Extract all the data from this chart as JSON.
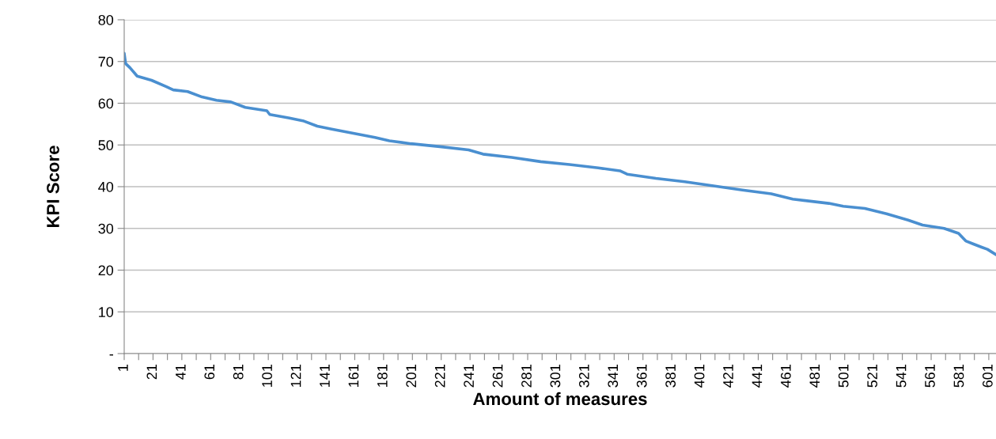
{
  "chart_data": {
    "type": "line",
    "xlabel": "Amount of measures",
    "ylabel": "KPI Score",
    "x": [
      1,
      2,
      5,
      10,
      20,
      30,
      35,
      45,
      55,
      65,
      75,
      85,
      100,
      102,
      115,
      125,
      135,
      145,
      160,
      175,
      185,
      200,
      220,
      240,
      250,
      270,
      290,
      310,
      330,
      345,
      350,
      370,
      390,
      410,
      430,
      450,
      465,
      490,
      500,
      515,
      530,
      545,
      555,
      570,
      580,
      585,
      590,
      596,
      600,
      606
    ],
    "series": [
      {
        "color": "#4a8fd0",
        "values": [
          72,
          69.5,
          68.5,
          66.5,
          65.5,
          64,
          63.2,
          62.8,
          61.5,
          60.7,
          60.3,
          59,
          58.2,
          57.3,
          56.5,
          55.8,
          54.5,
          53.8,
          52.8,
          51.8,
          51,
          50.3,
          49.6,
          48.8,
          47.8,
          47,
          46,
          45.3,
          44.5,
          43.8,
          43,
          42,
          41.2,
          40.2,
          39.2,
          38.3,
          37,
          36,
          35.3,
          34.8,
          33.5,
          32,
          30.8,
          30,
          28.8,
          27,
          26.3,
          25.5,
          25,
          23.7
        ]
      }
    ],
    "xlim": [
      1,
      606
    ],
    "xticks": [
      {
        "value": 1,
        "label": "1"
      },
      {
        "value": 11,
        "label": null
      },
      {
        "value": 21,
        "label": "21"
      },
      {
        "value": 31,
        "label": null
      },
      {
        "value": 41,
        "label": "41"
      },
      {
        "value": 51,
        "label": null
      },
      {
        "value": 61,
        "label": "61"
      },
      {
        "value": 71,
        "label": null
      },
      {
        "value": 81,
        "label": "81"
      },
      {
        "value": 91,
        "label": null
      },
      {
        "value": 101,
        "label": "101"
      },
      {
        "value": 111,
        "label": null
      },
      {
        "value": 121,
        "label": "121"
      },
      {
        "value": 131,
        "label": null
      },
      {
        "value": 141,
        "label": "141"
      },
      {
        "value": 151,
        "label": null
      },
      {
        "value": 161,
        "label": "161"
      },
      {
        "value": 171,
        "label": null
      },
      {
        "value": 181,
        "label": "181"
      },
      {
        "value": 191,
        "label": null
      },
      {
        "value": 201,
        "label": "201"
      },
      {
        "value": 211,
        "label": null
      },
      {
        "value": 221,
        "label": "221"
      },
      {
        "value": 231,
        "label": null
      },
      {
        "value": 241,
        "label": "241"
      },
      {
        "value": 251,
        "label": null
      },
      {
        "value": 261,
        "label": "261"
      },
      {
        "value": 271,
        "label": null
      },
      {
        "value": 281,
        "label": "281"
      },
      {
        "value": 291,
        "label": null
      },
      {
        "value": 301,
        "label": "301"
      },
      {
        "value": 311,
        "label": null
      },
      {
        "value": 321,
        "label": "321"
      },
      {
        "value": 331,
        "label": null
      },
      {
        "value": 341,
        "label": "341"
      },
      {
        "value": 351,
        "label": null
      },
      {
        "value": 361,
        "label": "361"
      },
      {
        "value": 371,
        "label": null
      },
      {
        "value": 381,
        "label": "381"
      },
      {
        "value": 391,
        "label": null
      },
      {
        "value": 401,
        "label": "401"
      },
      {
        "value": 411,
        "label": null
      },
      {
        "value": 421,
        "label": "421"
      },
      {
        "value": 431,
        "label": null
      },
      {
        "value": 441,
        "label": "441"
      },
      {
        "value": 451,
        "label": null
      },
      {
        "value": 461,
        "label": "461"
      },
      {
        "value": 471,
        "label": null
      },
      {
        "value": 481,
        "label": "481"
      },
      {
        "value": 491,
        "label": null
      },
      {
        "value": 501,
        "label": "501"
      },
      {
        "value": 511,
        "label": null
      },
      {
        "value": 521,
        "label": "521"
      },
      {
        "value": 531,
        "label": null
      },
      {
        "value": 541,
        "label": "541"
      },
      {
        "value": 551,
        "label": null
      },
      {
        "value": 561,
        "label": "561"
      },
      {
        "value": 571,
        "label": null
      },
      {
        "value": 581,
        "label": "581"
      },
      {
        "value": 591,
        "label": null
      },
      {
        "value": 601,
        "label": "601"
      }
    ],
    "ylim": [
      0,
      80
    ],
    "yticks": [
      {
        "value": 0,
        "label": "-"
      },
      10,
      20,
      30,
      40,
      50,
      60,
      70,
      80
    ],
    "grid": "y",
    "legend": false
  }
}
